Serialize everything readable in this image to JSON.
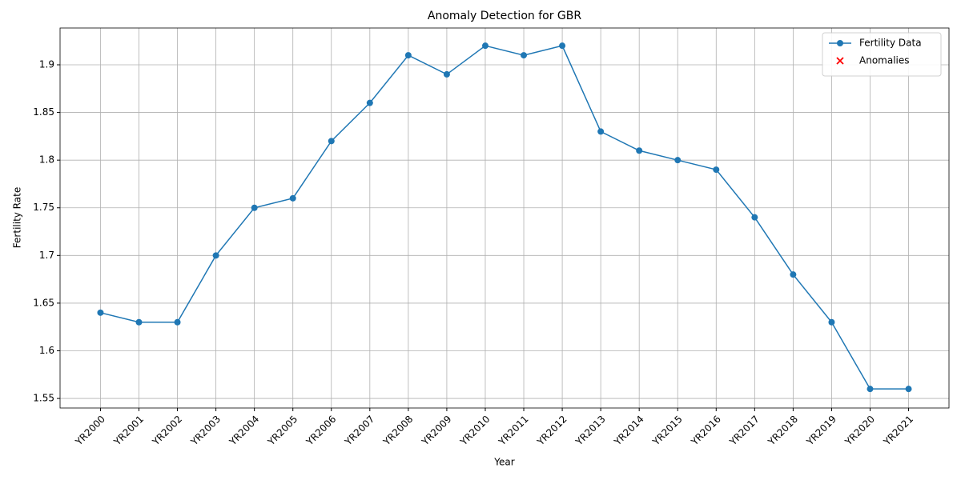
{
  "chart_data": {
    "type": "line",
    "title": "Anomaly Detection for GBR",
    "x_label": "Year",
    "y_label": "Fertility Rate",
    "categories": [
      "YR2000",
      "YR2001",
      "YR2002",
      "YR2003",
      "YR2004",
      "YR2005",
      "YR2006",
      "YR2007",
      "YR2008",
      "YR2009",
      "YR2010",
      "YR2011",
      "YR2012",
      "YR2013",
      "YR2014",
      "YR2015",
      "YR2016",
      "YR2017",
      "YR2018",
      "YR2019",
      "YR2020",
      "YR2021"
    ],
    "series": [
      {
        "name": "Fertility Data",
        "color": "#1f77b4",
        "marker": "o",
        "values": [
          1.64,
          1.63,
          1.63,
          1.7,
          1.75,
          1.76,
          1.82,
          1.86,
          1.91,
          1.89,
          1.92,
          1.91,
          1.92,
          1.83,
          1.81,
          1.8,
          1.79,
          1.74,
          1.68,
          1.63,
          1.56,
          1.56
        ]
      },
      {
        "name": "Anomalies",
        "color": "#ff0000",
        "marker": "x",
        "values": [
          null,
          null,
          null,
          null,
          null,
          null,
          null,
          null,
          null,
          null,
          null,
          null,
          null,
          null,
          null,
          null,
          null,
          null,
          null,
          null,
          null,
          null
        ]
      }
    ],
    "ylim": [
      1.54,
      1.9386
    ],
    "yticks": [
      1.55,
      1.6,
      1.65,
      1.7,
      1.75,
      1.8,
      1.85,
      1.9
    ],
    "grid": true,
    "legend": "upper right"
  }
}
